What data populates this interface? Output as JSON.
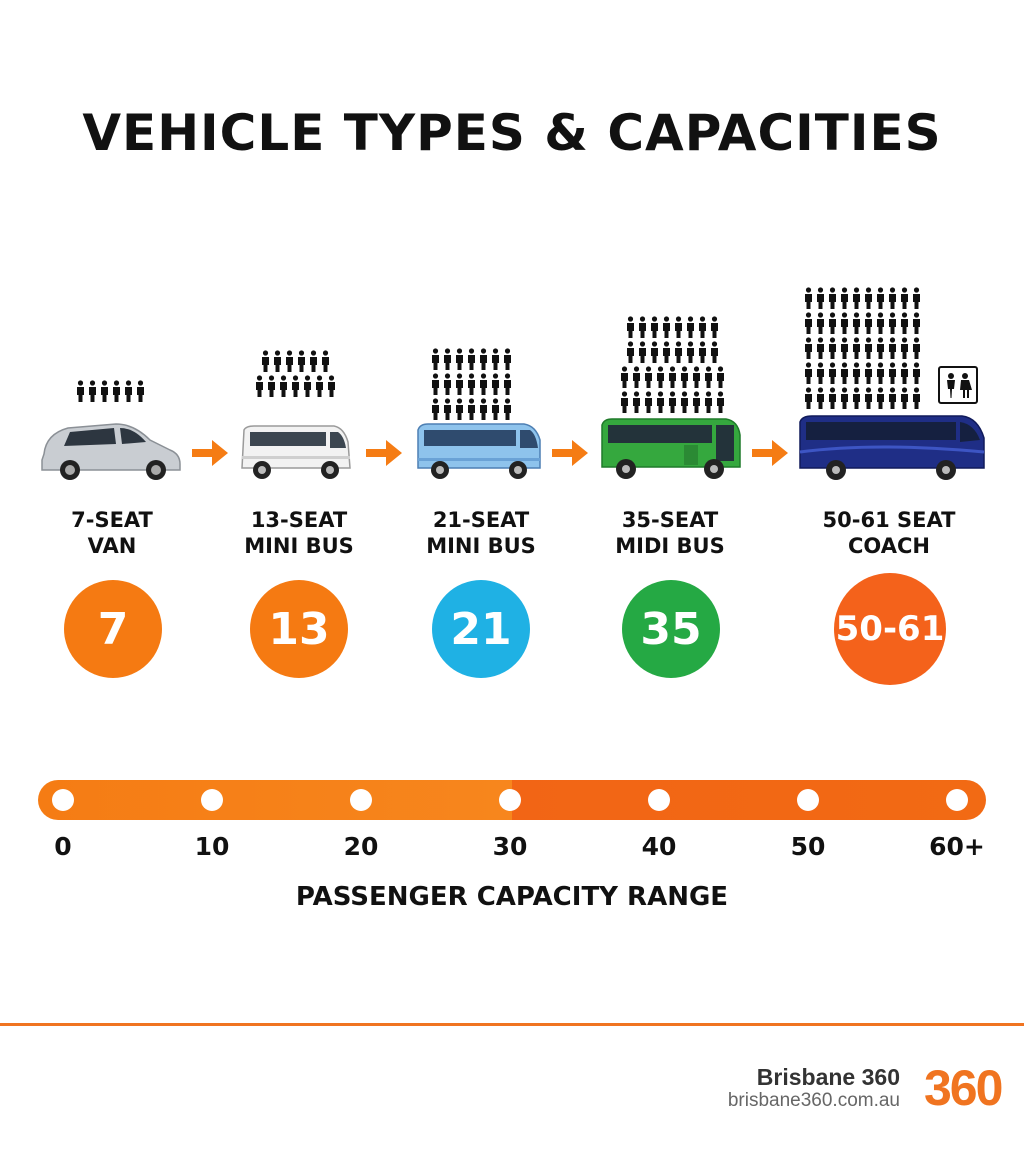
{
  "title": "VEHICLE TYPES & CAPACITIES",
  "vehicles": [
    {
      "line1": "7-SEAT",
      "line2": "VAN",
      "capacity": "7",
      "color": "#f57a12",
      "body_color": "#c9cdd2"
    },
    {
      "line1": "13-SEAT",
      "line2": "MINI BUS",
      "capacity": "13",
      "color": "#f57a12",
      "body_color": "#f2f2f2"
    },
    {
      "line1": "21-SEAT",
      "line2": "MINI BUS",
      "capacity": "21",
      "color": "#1fb1e4",
      "body_color": "#8ec3ec"
    },
    {
      "line1": "35-SEAT",
      "line2": "MIDI BUS",
      "capacity": "35",
      "color": "#25a944",
      "body_color": "#35a83e"
    },
    {
      "line1": "50-61 SEAT",
      "line2": "COACH",
      "capacity": "50-61",
      "color": "#f4621b",
      "body_color": "#1f2e86"
    }
  ],
  "scale": {
    "ticks": [
      "0",
      "10",
      "20",
      "30",
      "40",
      "50",
      "60+"
    ],
    "title": "PASSENGER CAPACITY RANGE",
    "bar_colors": [
      "#f57c14",
      "#f26515"
    ]
  },
  "footer": {
    "brand_name": "Brisbane 360",
    "brand_url": "brisbane360.com.au",
    "logo_text": "360",
    "accent": "#f07420"
  }
}
